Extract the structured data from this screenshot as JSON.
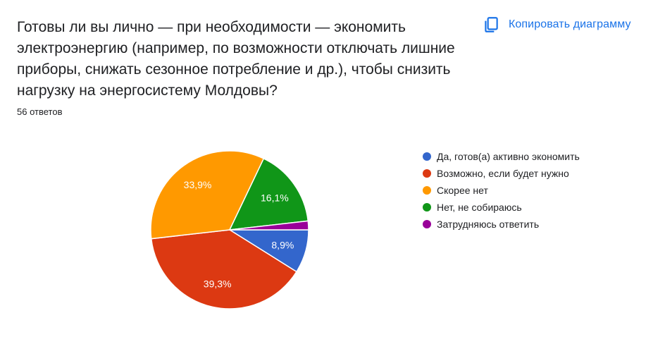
{
  "question": {
    "title": "Готовы ли вы лично — при необходимости — экономить электроэнергию (например, по возможности отключать лишние приборы, снижать сезонное потребление и др.), чтобы снизить нагрузку на энергосистему Молдовы?",
    "responses": "56 ответов"
  },
  "copy_button": {
    "label": "Копировать диаграмму",
    "icon": "copy-icon",
    "color": "#1a73e8"
  },
  "chart_data": {
    "type": "pie",
    "categories": [
      "Да, готов(а) активно экономить",
      "Возможно, если будет нужно",
      "Скорее нет",
      "Нет, не собираюсь",
      "Затрудняюсь ответить"
    ],
    "values": [
      8.9,
      39.3,
      33.9,
      16.1,
      1.8
    ],
    "labels": [
      "8,9%",
      "39,3%",
      "33,9%",
      "16,1%",
      ""
    ],
    "colors": [
      "#3366cc",
      "#dc3912",
      "#ff9900",
      "#109618",
      "#990099"
    ],
    "legend": "right"
  }
}
